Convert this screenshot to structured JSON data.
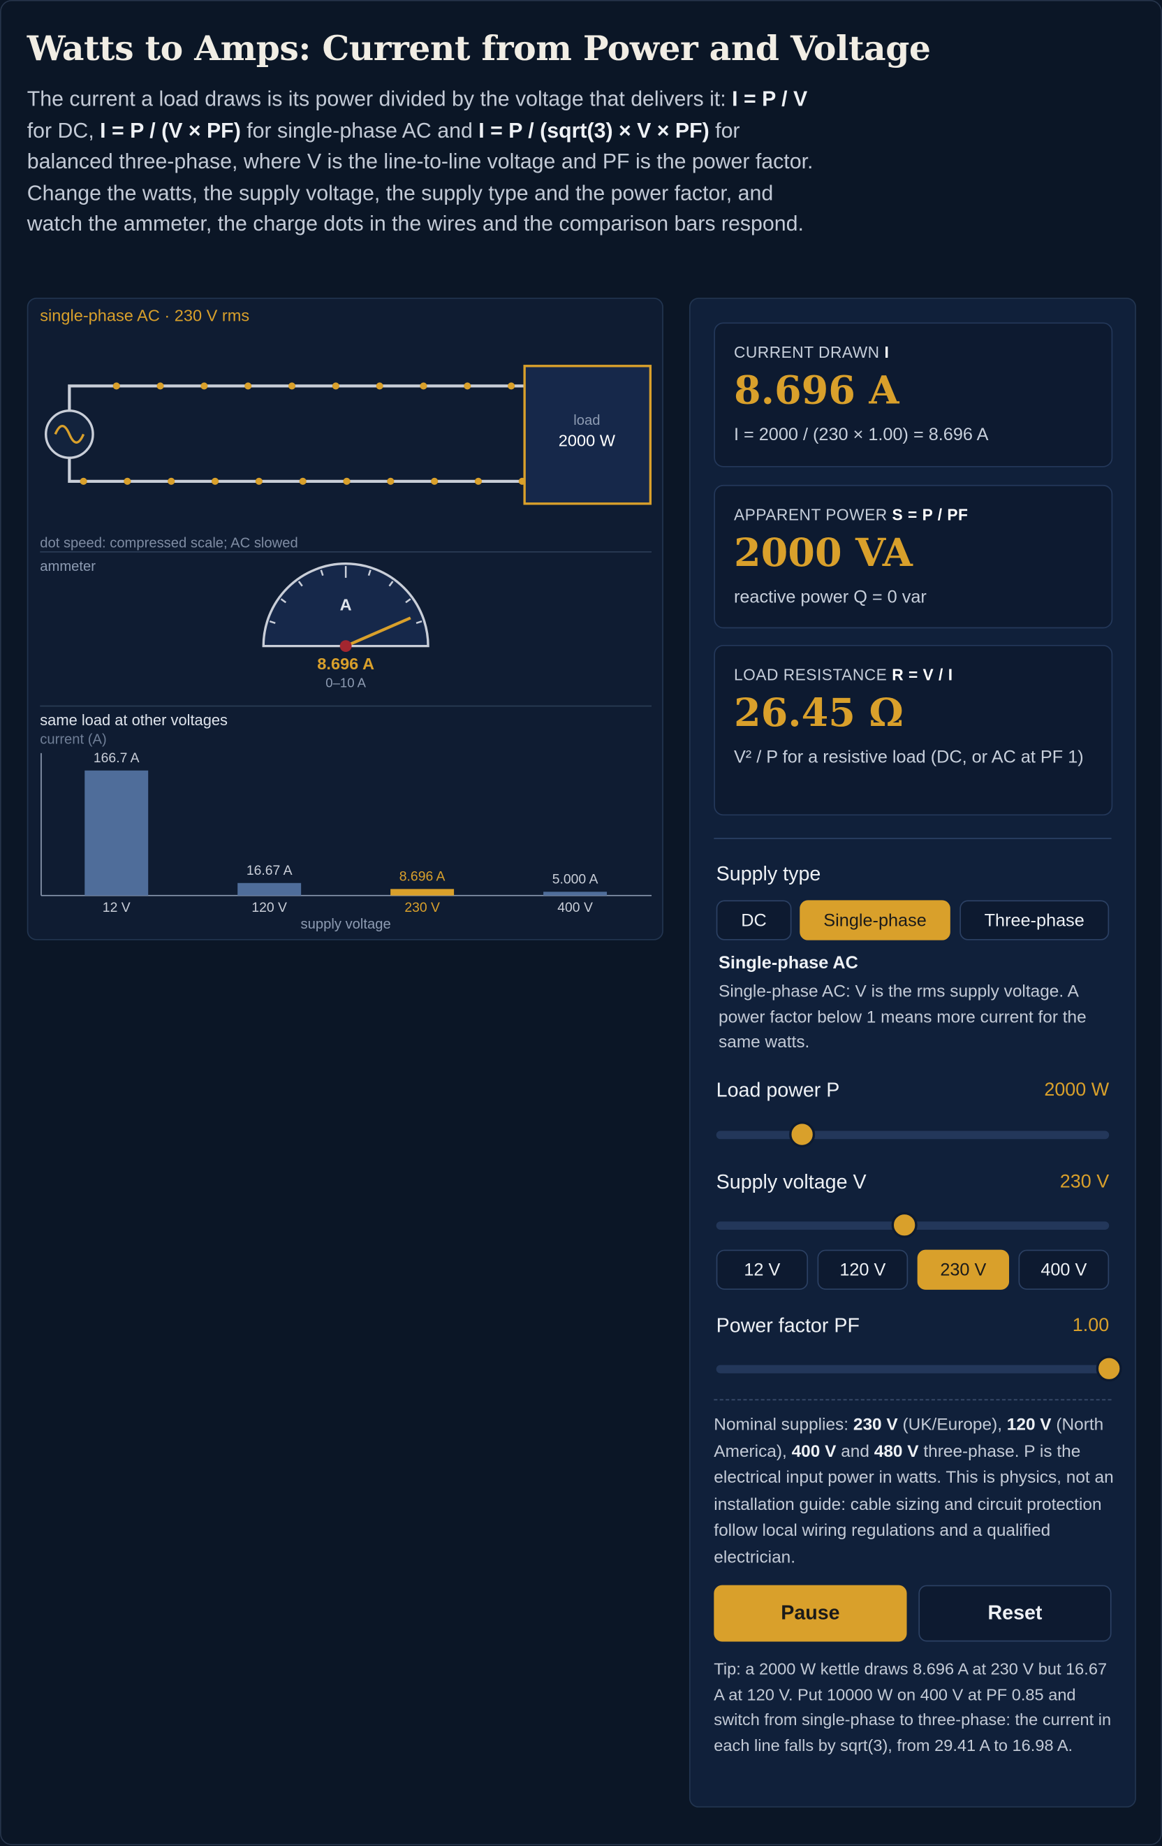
{
  "header": {
    "title": "Watts to Amps: Current from Power and Voltage",
    "intro": [
      "The current a load draws is its power divided by the voltage that delivers it: ",
      "I = P / V",
      " for DC, ",
      "I = P / (V × PF)",
      " for single-phase AC and ",
      "I = P / (sqrt(3) × V × PF)",
      " for balanced three-phase, where V is the line-to-line voltage and PF is the power factor. Change the watts, the supply voltage, the supply type and the power factor, and watch the ammeter, the charge dots in the wires and the comparison bars respond."
    ]
  },
  "circuit": {
    "label": "single-phase AC · 230 V rms",
    "load_label": "load",
    "load_value": "2000 W",
    "dot_note": "dot speed: compressed scale; AC slowed"
  },
  "ammeter": {
    "title": "ammeter",
    "unit": "A",
    "reading": "8.696 A",
    "range": "0–10 A",
    "value": 8.696,
    "min": 0,
    "max": 10
  },
  "comparison_chart": {
    "type": "bar",
    "title": "same load at other voltages",
    "y_label": "current (A)",
    "x_label": "supply voltage",
    "categories": [
      "12 V",
      "120 V",
      "230 V",
      "400 V"
    ],
    "values": [
      166.7,
      16.67,
      8.696,
      5.0
    ],
    "value_labels": [
      "166.7 A",
      "16.67 A",
      "8.696 A",
      "5.000 A"
    ],
    "colors": [
      "#4f6d9a",
      "#4f6d9a",
      "#d9a02b",
      "#4f6d9a"
    ]
  },
  "results": [
    {
      "caption": "CURRENT DRAWN",
      "symbol": "I",
      "value": "8.696 A",
      "detail": "I = 2000 / (230 × 1.00) = 8.696 A"
    },
    {
      "caption": "APPARENT POWER",
      "symbol": "S = P / PF",
      "value": "2000 VA",
      "detail": "reactive power Q = 0 var"
    },
    {
      "caption": "LOAD RESISTANCE",
      "symbol": "R = V / I",
      "value": "26.45 Ω",
      "detail": "V² / P for a resistive load (DC, or AC at PF 1)"
    }
  ],
  "controls": {
    "supply_type": {
      "label": "Supply type",
      "options": [
        "DC",
        "Single-phase",
        "Three-phase"
      ],
      "selected_title": "Single-phase AC",
      "selected_description": "Single-phase AC: V is the rms supply voltage. A power factor below 1 means more current for the same watts."
    },
    "load_power": {
      "label": "Load power P",
      "value": "2000 W"
    },
    "supply_voltage": {
      "label": "Supply voltage V",
      "value": "230 V",
      "presets": [
        "12 V",
        "120 V",
        "230 V",
        "400 V"
      ]
    },
    "power_factor": {
      "label": "Power factor PF",
      "value": "1.00"
    }
  },
  "note": [
    "Nominal supplies: ",
    "230 V",
    " (UK/Europe), ",
    "120 V",
    " (North America), ",
    "400 V",
    " and ",
    "480 V",
    " three-phase. P is the electrical input power in watts. This is physics, not an installation guide: cable sizing and circuit protection follow local wiring regulations and a qualified electrician."
  ],
  "buttons": [
    "Pause",
    "Reset"
  ],
  "tip": "Tip: a 2000 W kettle draws 8.696 A at 230 V but 16.67 A at 120 V. Put 10000 W on 400 V at PF 0.85 and switch from single-phase to three-phase: the current in each line falls by sqrt(3), from 29.41 A to 16.98 A."
}
